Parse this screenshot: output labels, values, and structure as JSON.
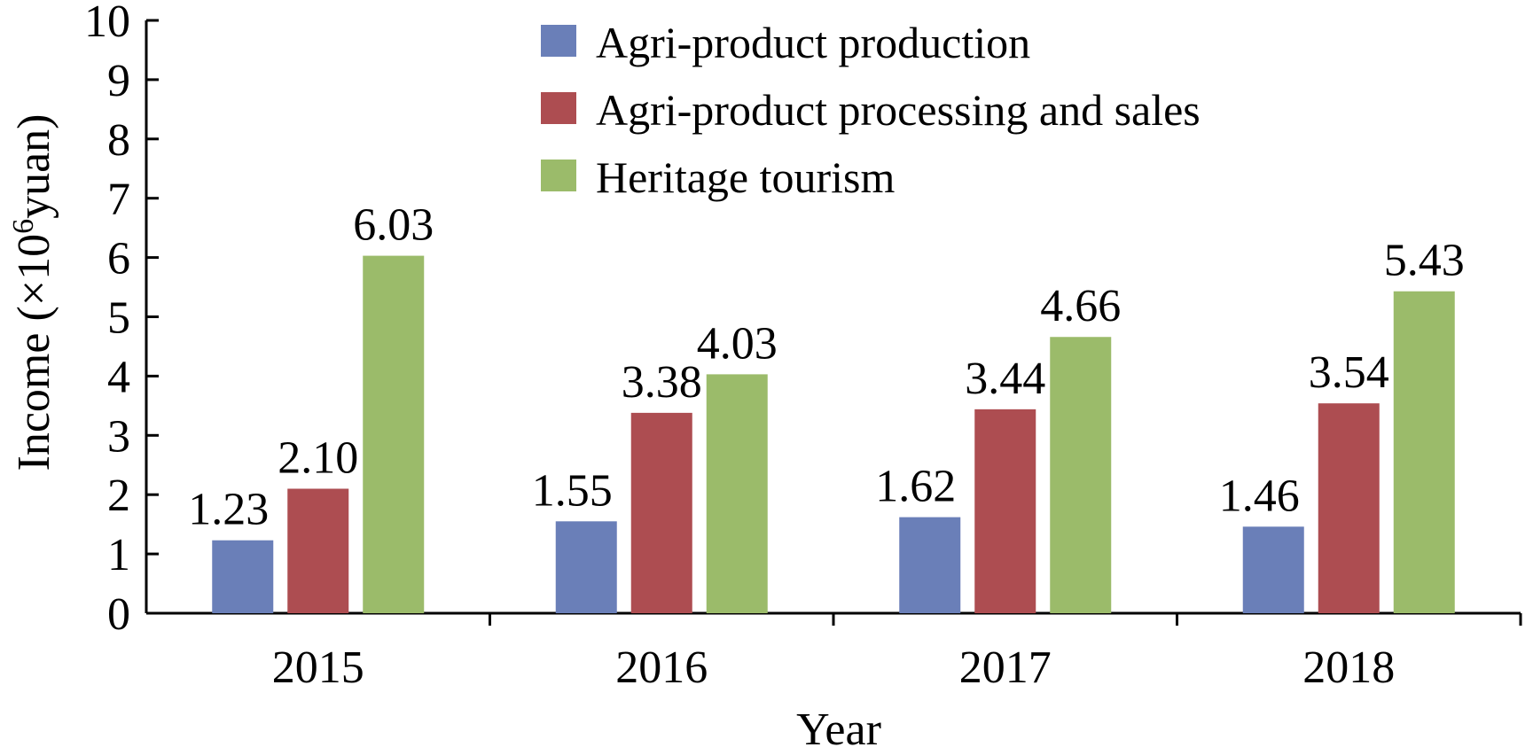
{
  "chart_data": {
    "type": "bar",
    "xlabel": "Year",
    "ylabel_prefix": "Income (×10",
    "ylabel_sup": "6",
    "ylabel_suffix": "yuan)",
    "ylim": [
      0,
      10
    ],
    "yticks": [
      "0",
      "1",
      "2",
      "3",
      "4",
      "5",
      "6",
      "7",
      "8",
      "9",
      "10"
    ],
    "categories": [
      "2015",
      "2016",
      "2017",
      "2018"
    ],
    "legend_position": "top-center",
    "grid": false,
    "series": [
      {
        "name": "Agri-product production",
        "color": "#6a7fb8",
        "values": [
          1.23,
          1.55,
          1.62,
          1.46
        ],
        "labels": [
          "1.23",
          "1.55",
          "1.62",
          "1.46"
        ]
      },
      {
        "name": "Agri-product processing and sales",
        "color": "#ad4d51",
        "values": [
          2.1,
          3.38,
          3.44,
          3.54
        ],
        "labels": [
          "2.10",
          "3.38",
          "3.44",
          "3.54"
        ]
      },
      {
        "name": "Heritage tourism",
        "color": "#9bbb6a",
        "values": [
          6.03,
          4.03,
          4.66,
          5.43
        ],
        "labels": [
          "6.03",
          "4.03",
          "4.66",
          "5.43"
        ]
      }
    ]
  }
}
